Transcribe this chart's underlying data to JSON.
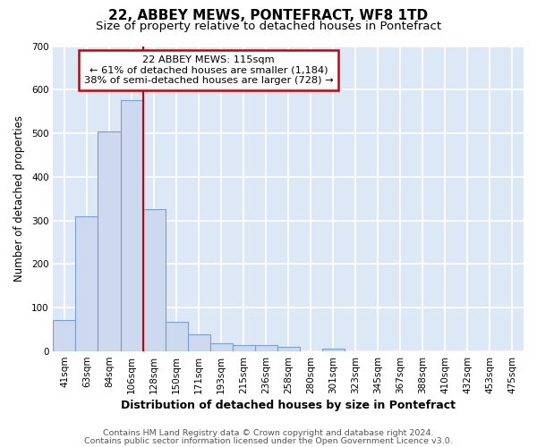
{
  "title": "22, ABBEY MEWS, PONTEFRACT, WF8 1TD",
  "subtitle": "Size of property relative to detached houses in Pontefract",
  "xlabel": "Distribution of detached houses by size in Pontefract",
  "ylabel": "Number of detached properties",
  "bar_labels": [
    "41sqm",
    "63sqm",
    "84sqm",
    "106sqm",
    "128sqm",
    "150sqm",
    "171sqm",
    "193sqm",
    "215sqm",
    "236sqm",
    "258sqm",
    "280sqm",
    "301sqm",
    "323sqm",
    "345sqm",
    "367sqm",
    "388sqm",
    "410sqm",
    "432sqm",
    "453sqm",
    "475sqm"
  ],
  "bar_values": [
    72,
    310,
    505,
    575,
    325,
    67,
    40,
    18,
    15,
    15,
    10,
    0,
    6,
    0,
    0,
    0,
    0,
    0,
    0,
    0,
    0
  ],
  "bar_color": "#ccd9ee",
  "bar_edge_color": "#7aa0cc",
  "vline_x": 3.5,
  "vline_color": "#cc0000",
  "ylim": [
    0,
    700
  ],
  "yticks": [
    0,
    100,
    200,
    300,
    400,
    500,
    600,
    700
  ],
  "annotation_title": "22 ABBEY MEWS: 115sqm",
  "annotation_line1": "← 61% of detached houses are smaller (1,184)",
  "annotation_line2": "38% of semi-detached houses are larger (728) →",
  "annotation_box_color": "#ffffff",
  "annotation_box_edge": "#cc0000",
  "footer1": "Contains HM Land Registry data © Crown copyright and database right 2024.",
  "footer2": "Contains public sector information licensed under the Open Government Licence v3.0.",
  "plot_bg_color": "#dce8f5",
  "fig_bg_color": "#ffffff",
  "grid_color": "#ffffff",
  "title_fontsize": 11,
  "subtitle_fontsize": 9.5,
  "xlabel_fontsize": 9,
  "ylabel_fontsize": 8.5,
  "tick_fontsize": 7.5,
  "footer_fontsize": 6.8
}
